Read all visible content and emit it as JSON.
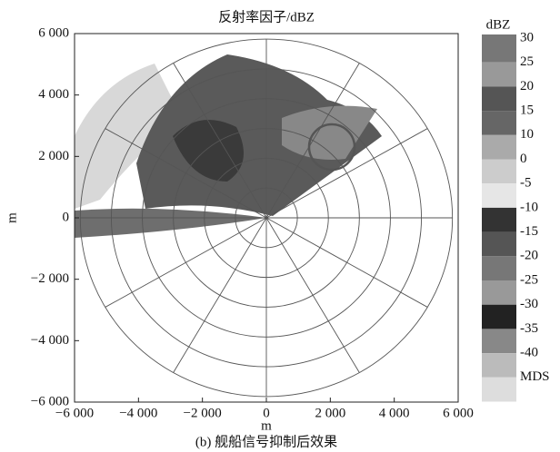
{
  "chart_data": {
    "type": "ppi",
    "title": "反射率因子/dBZ",
    "xlabel": "m",
    "ylabel": "m",
    "caption": "(b) 舰船信号抑制后效果",
    "xlim": [
      -6000,
      6000
    ],
    "ylim": [
      -6000,
      6000
    ],
    "xticks": [
      {
        "value": -6000,
        "label": "−6 000"
      },
      {
        "value": -4000,
        "label": "−4 000"
      },
      {
        "value": -2000,
        "label": "−2 000"
      },
      0,
      {
        "value": 2000,
        "label": "2 000"
      },
      {
        "value": 4000,
        "label": "4 000"
      },
      {
        "value": 6000,
        "label": "6 000"
      }
    ],
    "yticks": [
      {
        "value": -6000,
        "label": "−6 000"
      },
      {
        "value": -4000,
        "label": "−4 000"
      },
      {
        "value": -2000,
        "label": "−2 000"
      },
      0,
      {
        "value": 2000,
        "label": "2 000"
      },
      {
        "value": 4000,
        "label": "4 000"
      },
      {
        "value": 6000,
        "label": "6 000"
      }
    ],
    "colorbar": {
      "title": "dBZ",
      "ticks": [
        30,
        25,
        20,
        15,
        10,
        0,
        -5,
        -10,
        -15,
        -20,
        -25,
        -30,
        -35,
        -40
      ],
      "bottom_label": "MDS",
      "colors": [
        "#777",
        "#999",
        "#555",
        "#666",
        "#aaa",
        "#ccc",
        "#e6e6e6",
        "#333",
        "#555",
        "#777",
        "#999",
        "#222",
        "#888",
        "#bbb",
        "#ddd"
      ]
    }
  }
}
